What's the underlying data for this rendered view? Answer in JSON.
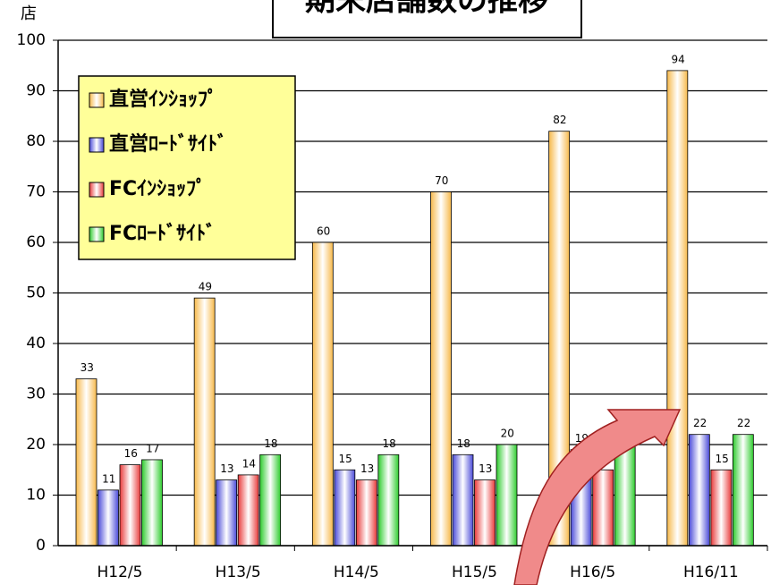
{
  "chart_data": {
    "type": "bar",
    "title": "期末店舗数の推移",
    "y_label": "店",
    "categories": [
      "H12/5",
      "H13/5",
      "H14/5",
      "H15/5",
      "H16/5",
      "H16/11"
    ],
    "series": [
      {
        "name": "直営ｲﾝｼｮｯﾌﾟ",
        "color": "#f7b94a",
        "values": [
          33,
          49,
          60,
          70,
          82,
          94
        ]
      },
      {
        "name": "直営ﾛｰﾄﾞｻｲﾄﾞ",
        "color": "#4a4ad8",
        "values": [
          11,
          13,
          15,
          18,
          19,
          22
        ]
      },
      {
        "name": "FCｲﾝｼｮｯﾌﾟ",
        "color": "#e83a3a",
        "values": [
          16,
          14,
          13,
          13,
          15,
          15
        ]
      },
      {
        "name": "FCﾛｰﾄﾞｻｲﾄﾞ",
        "color": "#2ecc2e",
        "values": [
          17,
          18,
          18,
          20,
          20,
          22
        ]
      }
    ],
    "ylim": [
      0,
      100
    ],
    "yticks": [
      0,
      10,
      20,
      30,
      40,
      50,
      60,
      70,
      80,
      90,
      100
    ],
    "grid": true,
    "legend": "upper left"
  }
}
